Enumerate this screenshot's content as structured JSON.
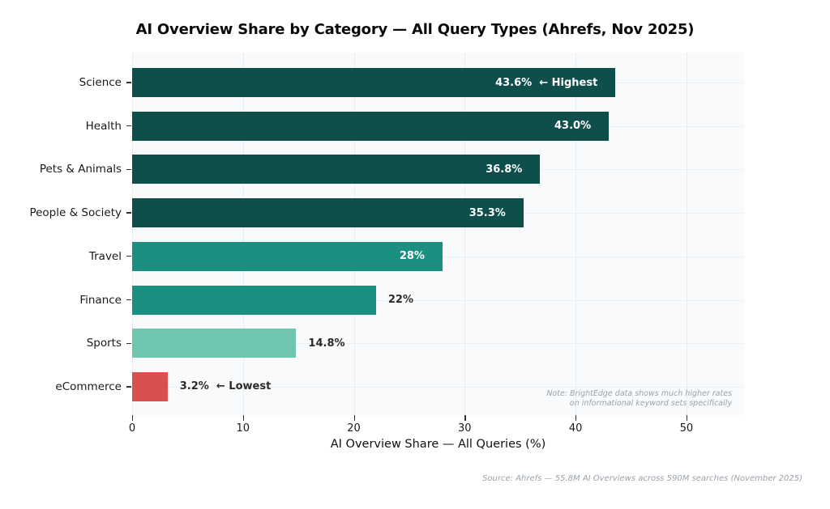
{
  "title": "AI Overview Share by Category — All Query Types (Ahrefs, Nov 2025)",
  "chart_data": {
    "type": "bar",
    "orientation": "horizontal",
    "title": "AI Overview Share by Category — All Query Types (Ahrefs, Nov 2025)",
    "categories": [
      "Science",
      "Health",
      "Pets & Animals",
      "People & Society",
      "Travel",
      "Finance",
      "Sports",
      "eCommerce"
    ],
    "values": [
      43.6,
      43.0,
      36.8,
      35.3,
      28.0,
      22.0,
      14.8,
      3.2
    ],
    "bar_labels": [
      "43.6%  ← Highest",
      "43.0%",
      "36.8%",
      "35.3%",
      "28%",
      "22%",
      "14.8%",
      "3.2%  ← Lowest"
    ],
    "label_inside": [
      true,
      true,
      true,
      true,
      true,
      false,
      false,
      false
    ],
    "bar_colors": [
      "#0e4f4c",
      "#0e4f4c",
      "#0e4f4c",
      "#0e4f4c",
      "#1b9080",
      "#1b9080",
      "#6ec6b1",
      "#d9504e"
    ],
    "xlabel": "AI Overview Share — All Queries (%)",
    "ylabel": "",
    "xticks": [
      0,
      10,
      20,
      30,
      40,
      50
    ],
    "xlim": [
      0,
      55.2
    ],
    "grid": true,
    "legend": "none",
    "note_line1": "Note: BrightEdge data shows much higher rates",
    "note_line2": "on informational keyword sets specifically"
  },
  "source": "Source: Ahrefs — 55.8M AI Overviews across 590M searches (November 2025)",
  "colors": {
    "plot_background": "#f8fafb",
    "figure_background": "#ffffff",
    "grid": "#e9edf0",
    "dark_teal": "#0e4f4c",
    "medium_teal": "#1b9080",
    "light_teal": "#6ec6b1",
    "red": "#d9504e",
    "inside_label": "#ffffff",
    "outside_label": "#2b2b2b",
    "muted_text": "#9aa2ab"
  }
}
